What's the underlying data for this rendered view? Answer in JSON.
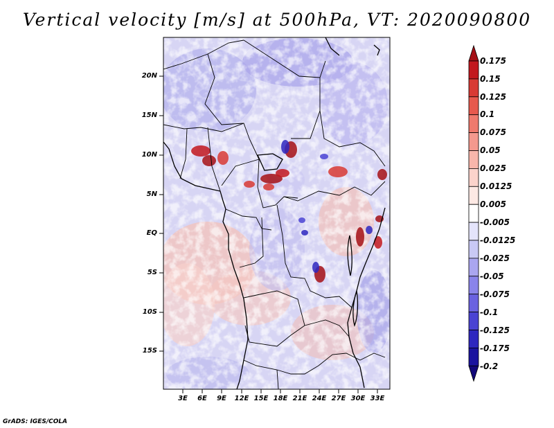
{
  "title": "Vertical velocity [m/s] at 500hPa, VT: 2020090800",
  "footer": "GrADS: IGES/COLA",
  "map": {
    "lat_labels": [
      "20N",
      "15N",
      "10N",
      "5N",
      "EQ",
      "5S",
      "10S",
      "15S"
    ],
    "lon_labels": [
      "3E",
      "6E",
      "9E",
      "12E",
      "15E",
      "18E",
      "21E",
      "24E",
      "27E",
      "30E",
      "33E"
    ]
  },
  "colorbar": {
    "labels": [
      "0.175",
      "0.15",
      "0.125",
      "0.1",
      "0.075",
      "0.05",
      "0.025",
      "0.0125",
      "0.005",
      "-0.005",
      "-0.0125",
      "-0.025",
      "-0.05",
      "-0.075",
      "-0.1",
      "-0.125",
      "-0.175",
      "-0.2"
    ],
    "colors": [
      "#a50f15",
      "#c2181e",
      "#d83a34",
      "#e7594d",
      "#ef7a6d",
      "#f4998e",
      "#f8b6ab",
      "#fbd3cb",
      "#fde9e4",
      "#ffffff",
      "#e4e4fb",
      "#c9c9f5",
      "#aaa6f0",
      "#8a84ea",
      "#6a62e0",
      "#4a43d3",
      "#2e27bf",
      "#1a139f",
      "#12087a"
    ]
  }
}
